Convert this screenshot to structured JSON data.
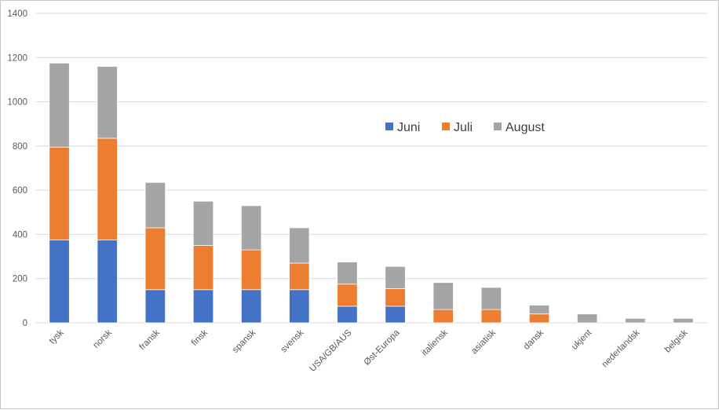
{
  "chart_data": {
    "type": "bar",
    "stacked": true,
    "categories": [
      "tysk",
      "norsk",
      "fransk",
      "finsk",
      "spansk",
      "svensk",
      "USA/GB/AUS",
      "Øst-Europa",
      "italiensk",
      "asiatisk",
      "dansk",
      "ukjent",
      "nederlandsk",
      "belgisk"
    ],
    "series": [
      {
        "name": "Juni",
        "color": "#4472C4",
        "values": [
          375,
          375,
          150,
          150,
          150,
          150,
          75,
          75,
          0,
          0,
          0,
          0,
          0,
          0
        ]
      },
      {
        "name": "Juli",
        "color": "#ED7D31",
        "values": [
          420,
          460,
          280,
          200,
          180,
          120,
          100,
          80,
          60,
          60,
          40,
          0,
          0,
          0
        ]
      },
      {
        "name": "August",
        "color": "#A5A5A5",
        "values": [
          380,
          325,
          205,
          200,
          200,
          160,
          100,
          100,
          122,
          100,
          40,
          40,
          20,
          20
        ]
      }
    ],
    "ylim": [
      0,
      1400
    ],
    "yticks": [
      0,
      200,
      400,
      600,
      800,
      1000,
      1200,
      1400
    ],
    "grid": true,
    "legend_position": "right-inside"
  }
}
